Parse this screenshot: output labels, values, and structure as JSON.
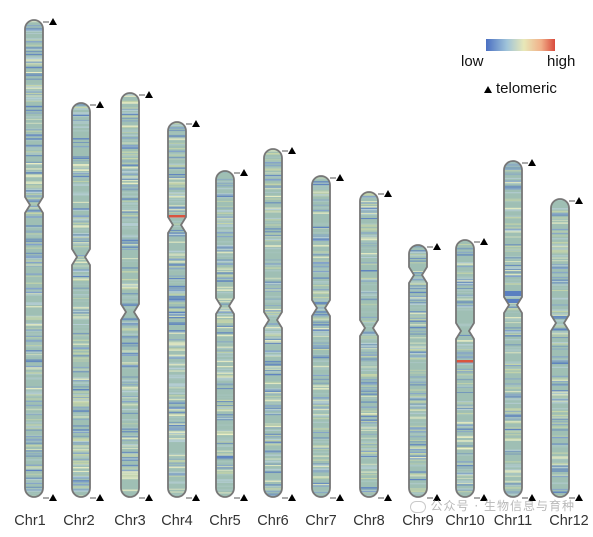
{
  "legend": {
    "low_label": "low",
    "high_label": "high",
    "telomeric_label": "telomeric",
    "gradient_colors": [
      "#4a6fc2",
      "#9fc3d9",
      "#e8e8b8",
      "#f1b089",
      "#d94a3c"
    ]
  },
  "colors": {
    "chromosome_base": "#9fbfb4",
    "outline": "#777777",
    "low": "#5a7fc0",
    "mid": "#c8d6a8",
    "pale": "#eef0c4",
    "high": "#d9543f",
    "marker": "#000000"
  },
  "chromosomes": [
    {
      "name": "Chr1",
      "telomere_top": true,
      "telomere_bottom": true,
      "hotspots": []
    },
    {
      "name": "Chr2",
      "telomere_top": true,
      "telomere_bottom": true,
      "hotspots": []
    },
    {
      "name": "Chr3",
      "telomere_top": true,
      "telomere_bottom": true,
      "hotspots": []
    },
    {
      "name": "Chr4",
      "telomere_top": true,
      "telomere_bottom": true,
      "hotspots": [
        "high-band-near-centromere"
      ]
    },
    {
      "name": "Chr5",
      "telomere_top": true,
      "telomere_bottom": true,
      "hotspots": []
    },
    {
      "name": "Chr6",
      "telomere_top": true,
      "telomere_bottom": true,
      "hotspots": []
    },
    {
      "name": "Chr7",
      "telomere_top": true,
      "telomere_bottom": true,
      "hotspots": []
    },
    {
      "name": "Chr8",
      "telomere_top": true,
      "telomere_bottom": true,
      "hotspots": []
    },
    {
      "name": "Chr9",
      "telomere_top": true,
      "telomere_bottom": true,
      "hotspots": []
    },
    {
      "name": "Chr10",
      "telomere_top": true,
      "telomere_bottom": true,
      "hotspots": [
        "high-band-below-centromere"
      ]
    },
    {
      "name": "Chr11",
      "telomere_top": true,
      "telomere_bottom": true,
      "hotspots": [
        "low-cluster-at-centromere"
      ]
    },
    {
      "name": "Chr12",
      "telomere_top": true,
      "telomere_bottom": true,
      "hotspots": []
    }
  ],
  "watermark": {
    "text": "公众号 · 生物信息与育种"
  }
}
